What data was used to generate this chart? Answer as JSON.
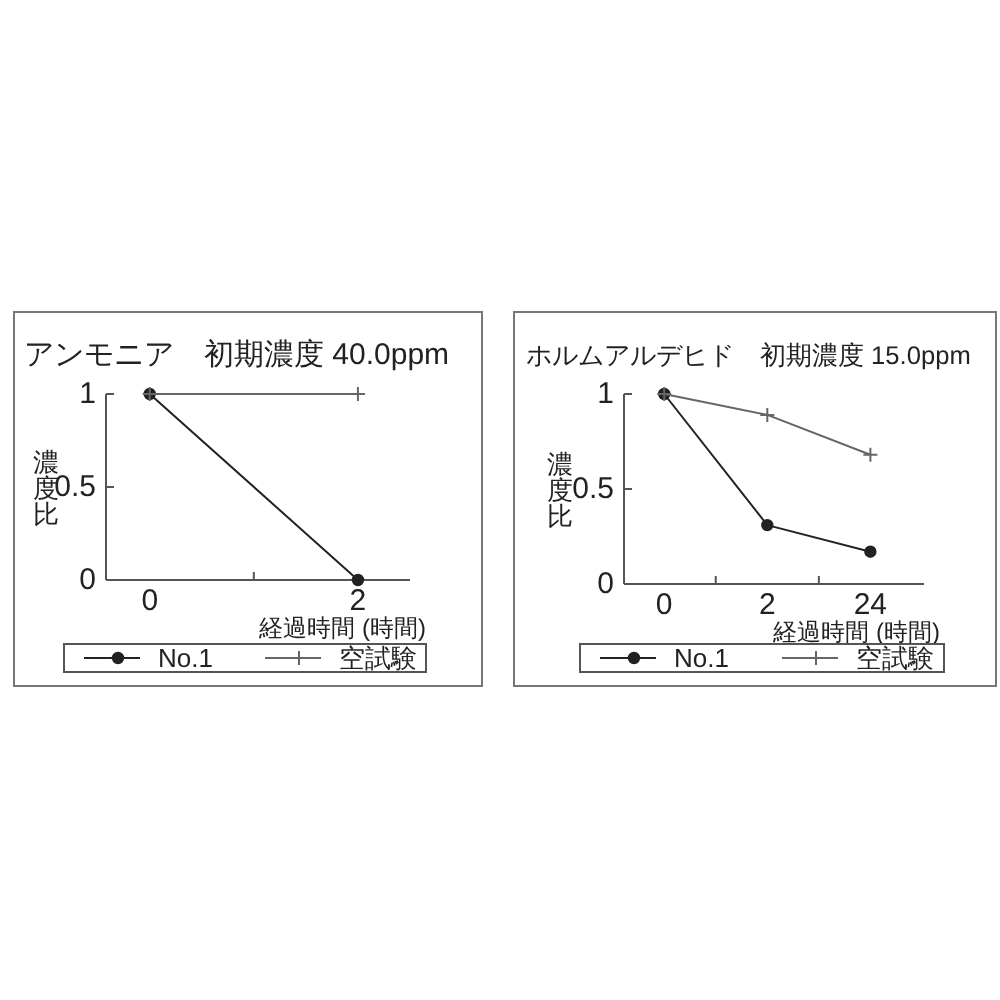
{
  "chart_data": [
    {
      "type": "line",
      "title": "アンモニア　初期濃度 40.0ppm",
      "xlabel": "経過時間 (時間)",
      "ylabel": "濃度比",
      "categories": [
        "0",
        "2"
      ],
      "series": [
        {
          "name": "No.1",
          "color": "#222222",
          "marker": "circle",
          "values": [
            1,
            0
          ]
        },
        {
          "name": "空試験",
          "color": "#666666",
          "marker": "cross",
          "values": [
            1,
            1
          ]
        }
      ],
      "ylim": [
        0,
        1
      ],
      "yticks": [
        0,
        0.5,
        1
      ],
      "legend": "bottom"
    },
    {
      "type": "line",
      "title": "ホルムアルデヒド　初期濃度 15.0ppm",
      "xlabel": "経過時間 (時間)",
      "ylabel": "濃度比",
      "categories": [
        "0",
        "2",
        "24"
      ],
      "series": [
        {
          "name": "No.1",
          "color": "#222222",
          "marker": "circle",
          "values": [
            1,
            0.31,
            0.17
          ]
        },
        {
          "name": "空試験",
          "color": "#666666",
          "marker": "cross",
          "values": [
            1,
            0.89,
            0.68
          ]
        }
      ],
      "ylim": [
        0,
        1
      ],
      "yticks": [
        0,
        0.5,
        1
      ],
      "legend": "bottom"
    }
  ]
}
